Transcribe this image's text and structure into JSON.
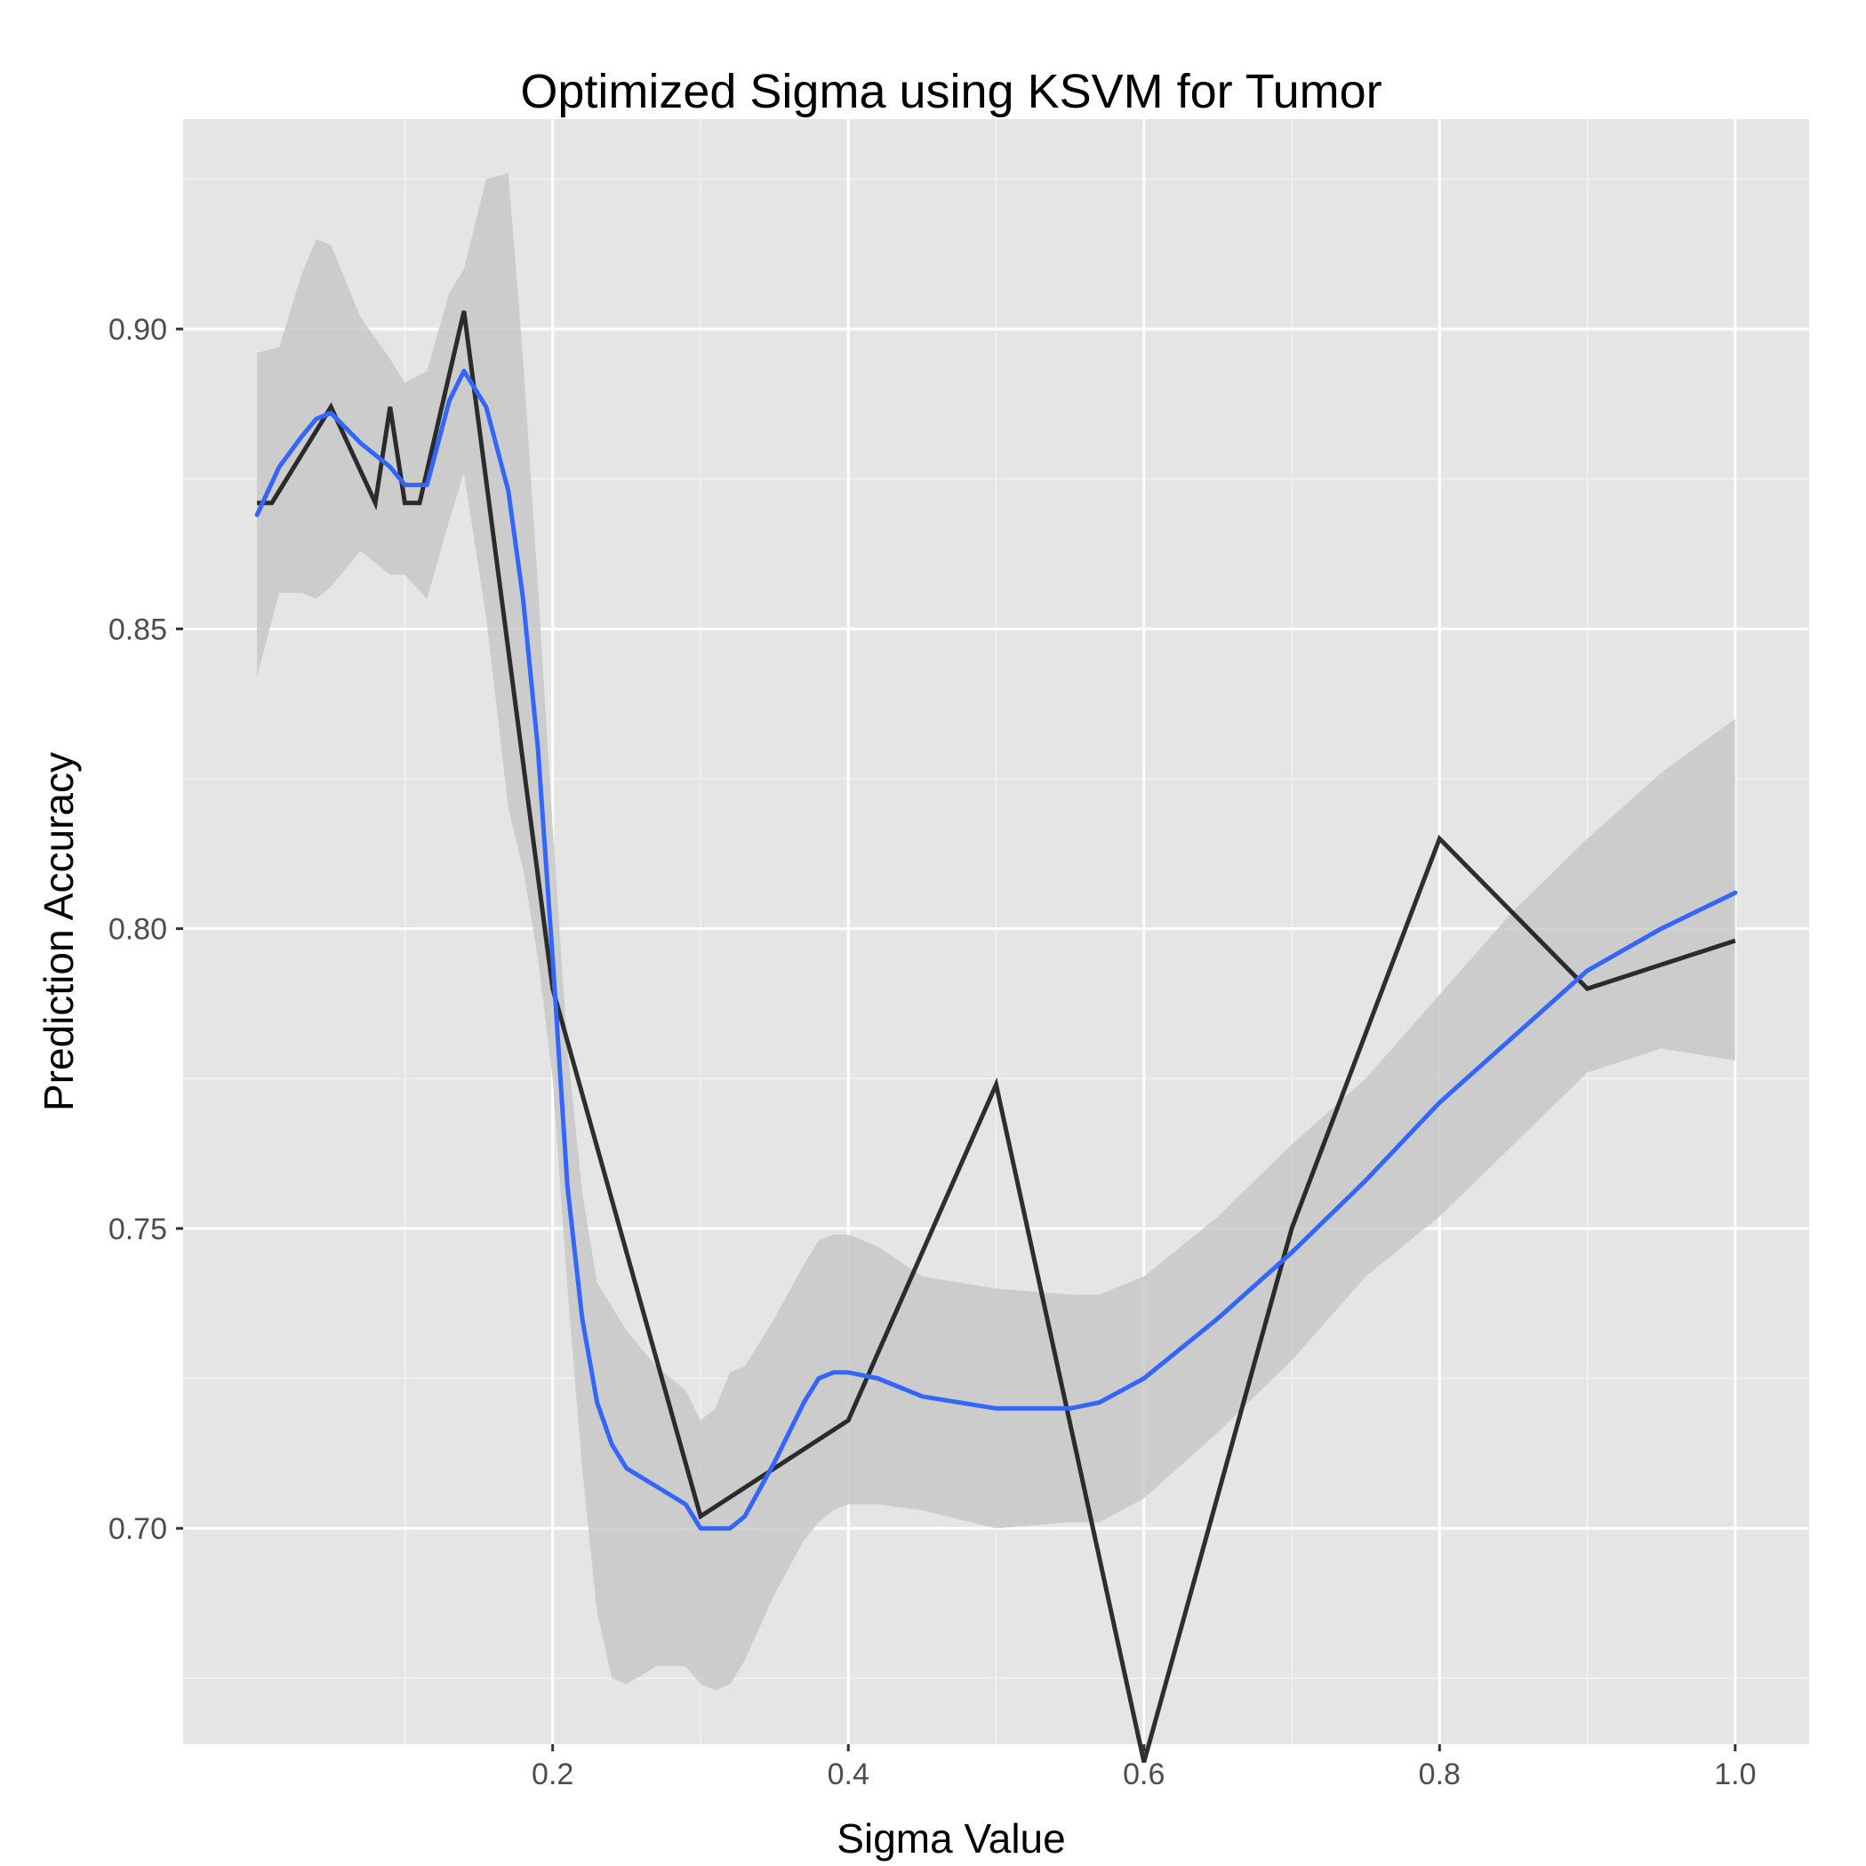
{
  "chart_data": {
    "type": "line",
    "title": "Optimized Sigma using KSVM for Tumor",
    "xlabel": "Sigma Value",
    "ylabel": "Prediction Accuracy",
    "xlim": [
      -0.05,
      1.05
    ],
    "ylim": [
      0.664,
      0.935
    ],
    "x_ticks": [
      0.2,
      0.4,
      0.6,
      0.8,
      1.0
    ],
    "x_tick_labels": [
      "0.2",
      "0.4",
      "0.6",
      "0.8",
      "1.0"
    ],
    "y_ticks": [
      0.7,
      0.75,
      0.8,
      0.85,
      0.9
    ],
    "y_tick_labels": [
      "0.70",
      "0.75",
      "0.80",
      "0.85",
      "0.90"
    ],
    "grid": true,
    "legend": "none",
    "colors": {
      "panel": "#e5e5e5",
      "grid": "#ffffff",
      "line": "#1a1a1a",
      "smooth": "#3366ff",
      "band": "#c8c8c8"
    },
    "series": [
      {
        "x": [
          0.0,
          0.01,
          0.05,
          0.08,
          0.09,
          0.1,
          0.11,
          0.14,
          0.2,
          0.3,
          0.4,
          0.5,
          0.6,
          0.7,
          0.8,
          0.9,
          1.0
        ],
        "values": [
          0.871,
          0.871,
          0.887,
          0.871,
          0.887,
          0.871,
          0.871,
          0.903,
          0.79,
          0.702,
          0.718,
          0.774,
          0.661,
          0.75,
          0.815,
          0.79,
          0.798
        ]
      }
    ],
    "smooth": {
      "x": [
        0.0,
        0.015,
        0.03,
        0.04,
        0.05,
        0.07,
        0.09,
        0.1,
        0.115,
        0.13,
        0.14,
        0.155,
        0.17,
        0.18,
        0.19,
        0.2,
        0.21,
        0.22,
        0.23,
        0.24,
        0.25,
        0.27,
        0.29,
        0.3,
        0.31,
        0.32,
        0.33,
        0.35,
        0.37,
        0.38,
        0.39,
        0.4,
        0.42,
        0.45,
        0.5,
        0.55,
        0.57,
        0.6,
        0.65,
        0.7,
        0.75,
        0.8,
        0.85,
        0.9,
        0.95,
        1.0
      ],
      "y": [
        0.869,
        0.877,
        0.882,
        0.885,
        0.886,
        0.881,
        0.877,
        0.874,
        0.874,
        0.888,
        0.893,
        0.887,
        0.873,
        0.855,
        0.83,
        0.795,
        0.757,
        0.735,
        0.721,
        0.714,
        0.71,
        0.707,
        0.704,
        0.7,
        0.7,
        0.7,
        0.702,
        0.711,
        0.721,
        0.725,
        0.726,
        0.726,
        0.725,
        0.722,
        0.72,
        0.72,
        0.721,
        0.725,
        0.735,
        0.746,
        0.758,
        0.771,
        0.782,
        0.793,
        0.8,
        0.806
      ],
      "upper": [
        0.896,
        0.897,
        0.909,
        0.915,
        0.914,
        0.902,
        0.895,
        0.891,
        0.893,
        0.906,
        0.91,
        0.925,
        0.926,
        0.895,
        0.857,
        0.817,
        0.78,
        0.756,
        0.741,
        0.737,
        0.733,
        0.727,
        0.723,
        0.718,
        0.72,
        0.726,
        0.727,
        0.735,
        0.744,
        0.748,
        0.749,
        0.749,
        0.747,
        0.742,
        0.74,
        0.739,
        0.739,
        0.742,
        0.752,
        0.764,
        0.775,
        0.789,
        0.803,
        0.815,
        0.826,
        0.835
      ],
      "lower": [
        0.842,
        0.856,
        0.856,
        0.855,
        0.857,
        0.863,
        0.859,
        0.859,
        0.855,
        0.868,
        0.876,
        0.852,
        0.82,
        0.81,
        0.795,
        0.775,
        0.74,
        0.71,
        0.686,
        0.675,
        0.674,
        0.677,
        0.677,
        0.674,
        0.673,
        0.674,
        0.678,
        0.689,
        0.698,
        0.701,
        0.703,
        0.704,
        0.704,
        0.703,
        0.7,
        0.701,
        0.701,
        0.705,
        0.716,
        0.728,
        0.742,
        0.752,
        0.764,
        0.776,
        0.78,
        0.778
      ]
    }
  }
}
